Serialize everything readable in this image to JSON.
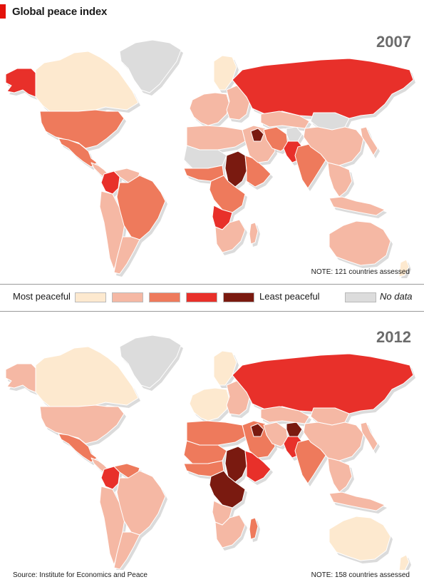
{
  "title": "Global peace index",
  "legend": {
    "low_label": "Most peaceful",
    "high_label": "Least peaceful",
    "nodata_label": "No data",
    "colors": [
      "#fde9cf",
      "#f5b8a4",
      "#ee7a5c",
      "#e8302a",
      "#7a1a10"
    ],
    "nodata_color": "#dcdcdc"
  },
  "panels": [
    {
      "year": "2007",
      "note": "NOTE: 121 countries assessed",
      "regions": {
        "canada": 0,
        "alaska": 3,
        "usa": 2,
        "greenland": "nodata",
        "mexico": 2,
        "central_america": 1,
        "colombia": 3,
        "venezuela": 1,
        "brazil": 2,
        "andean": 1,
        "southern_cone": 1,
        "western_europe": 1,
        "scandinavia": 0,
        "eastern_europe": 1,
        "russia": 3,
        "north_africa": 1,
        "west_africa": 2,
        "sahel": "nodata",
        "sudan": 4,
        "horn": 2,
        "central_africa": 2,
        "angola": 3,
        "southern_africa": 1,
        "madagascar": 1,
        "middle_east": 1,
        "iraq": 4,
        "iran": 2,
        "pakistan": 3,
        "afghanistan": "nodata",
        "central_asia": 1,
        "india": 2,
        "china": 1,
        "mongolia": "nodata",
        "korea_japan": 1,
        "se_asia": 1,
        "indonesia": 1,
        "australia": 1,
        "new_zealand": 0
      }
    },
    {
      "year": "2012",
      "note": "NOTE: 158 countries assessed",
      "regions": {
        "canada": 0,
        "alaska": 1,
        "usa": 1,
        "greenland": "nodata",
        "mexico": 2,
        "central_america": 1,
        "colombia": 3,
        "venezuela": 2,
        "brazil": 1,
        "andean": 1,
        "southern_cone": 1,
        "western_europe": 0,
        "scandinavia": 0,
        "eastern_europe": 1,
        "russia": 3,
        "north_africa": 2,
        "west_africa": 2,
        "sahel": 2,
        "sudan": 4,
        "horn": 3,
        "central_africa": 4,
        "angola": 1,
        "southern_africa": 1,
        "madagascar": 2,
        "middle_east": 2,
        "iraq": 4,
        "iran": 1,
        "pakistan": 3,
        "afghanistan": 4,
        "central_asia": 1,
        "india": 2,
        "china": 1,
        "mongolia": 1,
        "korea_japan": 1,
        "se_asia": 1,
        "indonesia": 1,
        "australia": 0,
        "new_zealand": 0
      }
    }
  ],
  "source": "Source: Institute for Economics and Peace"
}
